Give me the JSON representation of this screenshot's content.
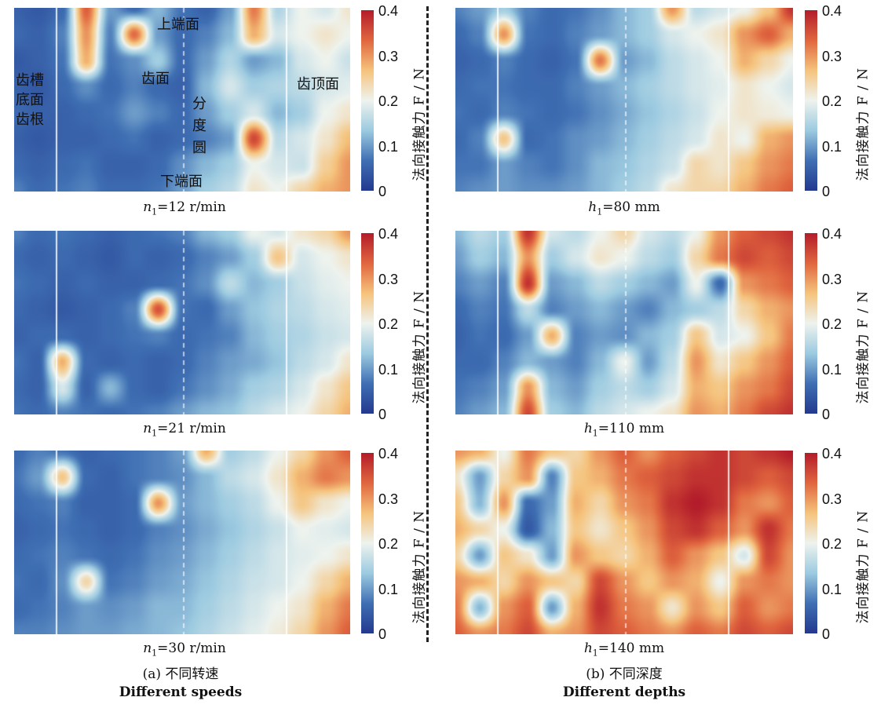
{
  "colorbar": {
    "ticks": [
      "0.4",
      "0.3",
      "0.2",
      "0.1",
      "0"
    ],
    "label": "法向接触力 F / N",
    "colors": [
      "#23398e",
      "#3f6fb3",
      "#9ccae0",
      "#eef3ee",
      "#f5c37c",
      "#e0663f",
      "#b31c2a"
    ]
  },
  "annotations": {
    "top_face": "上端面",
    "tooth_face": "齿面",
    "root_lines": [
      "齿槽",
      "底面",
      "齿根"
    ],
    "pitch_circle": [
      "分",
      "度",
      "圆"
    ],
    "bottom_face": "下端面",
    "tip_face": "齿顶面"
  },
  "captions": {
    "left": [
      {
        "sym": "n",
        "sub": "1",
        "text": "=12 r/min"
      },
      {
        "sym": "n",
        "sub": "1",
        "text": "=21 r/min"
      },
      {
        "sym": "n",
        "sub": "1",
        "text": "=30 r/min"
      }
    ],
    "right": [
      {
        "sym": "h",
        "sub": "1",
        "text": "=80 mm"
      },
      {
        "sym": "h",
        "sub": "1",
        "text": "=110 mm"
      },
      {
        "sym": "h",
        "sub": "1",
        "text": "=140 mm"
      }
    ]
  },
  "groups": {
    "left": {
      "cn": "(a) 不同转速",
      "en": "Different speeds"
    },
    "right": {
      "cn": "(b) 不同深度",
      "en": "Different depths"
    }
  },
  "chart_data": [
    {
      "type": "heatmap",
      "condition": "n1=12 r/min",
      "zlim": [
        0,
        0.4
      ],
      "rows": 8,
      "cols": 15,
      "values": [
        [
          0.05,
          0.04,
          0.06,
          0.34,
          0.1,
          0.06,
          0.12,
          0.07,
          0.05,
          0.1,
          0.32,
          0.15,
          0.2,
          0.18,
          0.22
        ],
        [
          0.06,
          0.05,
          0.08,
          0.3,
          0.08,
          0.33,
          0.1,
          0.06,
          0.08,
          0.12,
          0.28,
          0.18,
          0.2,
          0.22,
          0.2
        ],
        [
          0.04,
          0.05,
          0.07,
          0.28,
          0.07,
          0.09,
          0.14,
          0.06,
          0.1,
          0.15,
          0.1,
          0.12,
          0.18,
          0.2,
          0.17
        ],
        [
          0.05,
          0.04,
          0.06,
          0.09,
          0.06,
          0.08,
          0.06,
          0.05,
          0.12,
          0.18,
          0.14,
          0.15,
          0.16,
          0.18,
          0.19
        ],
        [
          0.06,
          0.05,
          0.05,
          0.06,
          0.07,
          0.1,
          0.08,
          0.06,
          0.1,
          0.14,
          0.18,
          0.12,
          0.14,
          0.2,
          0.22
        ],
        [
          0.05,
          0.04,
          0.05,
          0.05,
          0.06,
          0.07,
          0.05,
          0.06,
          0.08,
          0.1,
          0.36,
          0.16,
          0.18,
          0.22,
          0.27
        ],
        [
          0.06,
          0.05,
          0.06,
          0.07,
          0.05,
          0.05,
          0.06,
          0.09,
          0.12,
          0.14,
          0.2,
          0.18,
          0.17,
          0.25,
          0.3
        ],
        [
          0.08,
          0.06,
          0.07,
          0.08,
          0.06,
          0.06,
          0.07,
          0.1,
          0.14,
          0.16,
          0.22,
          0.2,
          0.24,
          0.28,
          0.3
        ]
      ]
    },
    {
      "type": "heatmap",
      "condition": "n1=21 r/min",
      "zlim": [
        0,
        0.4
      ],
      "rows": 8,
      "cols": 15,
      "values": [
        [
          0.08,
          0.06,
          0.07,
          0.06,
          0.05,
          0.06,
          0.07,
          0.08,
          0.12,
          0.14,
          0.2,
          0.18,
          0.22,
          0.24,
          0.3
        ],
        [
          0.06,
          0.05,
          0.06,
          0.05,
          0.04,
          0.06,
          0.05,
          0.06,
          0.08,
          0.1,
          0.14,
          0.26,
          0.18,
          0.2,
          0.22
        ],
        [
          0.07,
          0.06,
          0.05,
          0.06,
          0.05,
          0.05,
          0.06,
          0.07,
          0.09,
          0.16,
          0.12,
          0.14,
          0.17,
          0.19,
          0.2
        ],
        [
          0.06,
          0.05,
          0.04,
          0.05,
          0.06,
          0.08,
          0.35,
          0.07,
          0.06,
          0.1,
          0.13,
          0.15,
          0.16,
          0.18,
          0.19
        ],
        [
          0.05,
          0.06,
          0.06,
          0.05,
          0.06,
          0.07,
          0.08,
          0.06,
          0.07,
          0.08,
          0.12,
          0.14,
          0.15,
          0.17,
          0.18
        ],
        [
          0.07,
          0.05,
          0.28,
          0.06,
          0.05,
          0.06,
          0.05,
          0.06,
          0.08,
          0.1,
          0.11,
          0.13,
          0.16,
          0.18,
          0.22
        ],
        [
          0.06,
          0.05,
          0.18,
          0.05,
          0.12,
          0.06,
          0.05,
          0.07,
          0.09,
          0.11,
          0.14,
          0.15,
          0.18,
          0.22,
          0.26
        ],
        [
          0.07,
          0.06,
          0.08,
          0.07,
          0.06,
          0.07,
          0.08,
          0.1,
          0.12,
          0.13,
          0.16,
          0.18,
          0.2,
          0.24,
          0.28
        ]
      ]
    },
    {
      "type": "heatmap",
      "condition": "n1=30 r/min",
      "zlim": [
        0,
        0.4
      ],
      "rows": 8,
      "cols": 15,
      "values": [
        [
          0.06,
          0.08,
          0.07,
          0.05,
          0.06,
          0.07,
          0.08,
          0.1,
          0.28,
          0.14,
          0.16,
          0.2,
          0.24,
          0.3,
          0.34
        ],
        [
          0.07,
          0.1,
          0.26,
          0.06,
          0.05,
          0.07,
          0.08,
          0.09,
          0.12,
          0.16,
          0.18,
          0.22,
          0.28,
          0.32,
          0.3
        ],
        [
          0.06,
          0.07,
          0.08,
          0.05,
          0.05,
          0.06,
          0.3,
          0.1,
          0.12,
          0.14,
          0.16,
          0.2,
          0.26,
          0.22,
          0.2
        ],
        [
          0.05,
          0.06,
          0.07,
          0.06,
          0.05,
          0.06,
          0.08,
          0.09,
          0.11,
          0.13,
          0.15,
          0.17,
          0.2,
          0.19,
          0.18
        ],
        [
          0.06,
          0.07,
          0.08,
          0.07,
          0.06,
          0.07,
          0.09,
          0.1,
          0.12,
          0.14,
          0.16,
          0.18,
          0.19,
          0.2,
          0.22
        ],
        [
          0.07,
          0.06,
          0.09,
          0.24,
          0.07,
          0.08,
          0.1,
          0.11,
          0.13,
          0.15,
          0.17,
          0.18,
          0.2,
          0.24,
          0.28
        ],
        [
          0.06,
          0.07,
          0.08,
          0.1,
          0.09,
          0.1,
          0.12,
          0.12,
          0.14,
          0.16,
          0.18,
          0.2,
          0.22,
          0.28,
          0.32
        ],
        [
          0.08,
          0.08,
          0.09,
          0.1,
          0.1,
          0.11,
          0.12,
          0.13,
          0.15,
          0.17,
          0.19,
          0.21,
          0.24,
          0.3,
          0.34
        ]
      ]
    },
    {
      "type": "heatmap",
      "condition": "h1=80 mm",
      "zlim": [
        0,
        0.4
      ],
      "rows": 8,
      "cols": 15,
      "values": [
        [
          0.08,
          0.1,
          0.14,
          0.08,
          0.06,
          0.07,
          0.09,
          0.12,
          0.14,
          0.3,
          0.16,
          0.18,
          0.2,
          0.26,
          0.38
        ],
        [
          0.06,
          0.08,
          0.3,
          0.07,
          0.06,
          0.08,
          0.1,
          0.12,
          0.14,
          0.18,
          0.2,
          0.22,
          0.3,
          0.34,
          0.28
        ],
        [
          0.05,
          0.06,
          0.08,
          0.06,
          0.05,
          0.07,
          0.32,
          0.1,
          0.12,
          0.16,
          0.18,
          0.2,
          0.28,
          0.24,
          0.2
        ],
        [
          0.06,
          0.07,
          0.07,
          0.06,
          0.06,
          0.08,
          0.1,
          0.12,
          0.14,
          0.16,
          0.18,
          0.19,
          0.22,
          0.2,
          0.18
        ],
        [
          0.07,
          0.06,
          0.08,
          0.07,
          0.06,
          0.07,
          0.09,
          0.11,
          0.13,
          0.15,
          0.17,
          0.2,
          0.22,
          0.21,
          0.2
        ],
        [
          0.06,
          0.08,
          0.26,
          0.06,
          0.07,
          0.09,
          0.1,
          0.12,
          0.14,
          0.16,
          0.18,
          0.22,
          0.2,
          0.28,
          0.3
        ],
        [
          0.07,
          0.07,
          0.1,
          0.08,
          0.07,
          0.09,
          0.12,
          0.13,
          0.15,
          0.17,
          0.24,
          0.22,
          0.26,
          0.3,
          0.32
        ],
        [
          0.08,
          0.09,
          0.1,
          0.09,
          0.09,
          0.1,
          0.12,
          0.14,
          0.16,
          0.22,
          0.24,
          0.24,
          0.28,
          0.32,
          0.34
        ]
      ]
    },
    {
      "type": "heatmap",
      "condition": "h1=110 mm",
      "zlim": [
        0,
        0.4
      ],
      "rows": 8,
      "cols": 15,
      "values": [
        [
          0.12,
          0.16,
          0.14,
          0.38,
          0.18,
          0.16,
          0.2,
          0.24,
          0.18,
          0.16,
          0.2,
          0.3,
          0.34,
          0.36,
          0.38
        ],
        [
          0.1,
          0.14,
          0.12,
          0.3,
          0.14,
          0.18,
          0.22,
          0.2,
          0.16,
          0.14,
          0.24,
          0.32,
          0.36,
          0.34,
          0.36
        ],
        [
          0.08,
          0.1,
          0.08,
          0.38,
          0.1,
          0.12,
          0.16,
          0.14,
          0.12,
          0.1,
          0.2,
          0.06,
          0.3,
          0.32,
          0.34
        ],
        [
          0.06,
          0.08,
          0.07,
          0.16,
          0.08,
          0.1,
          0.12,
          0.1,
          0.08,
          0.12,
          0.14,
          0.16,
          0.24,
          0.28,
          0.3
        ],
        [
          0.05,
          0.07,
          0.06,
          0.1,
          0.28,
          0.08,
          0.1,
          0.09,
          0.12,
          0.14,
          0.26,
          0.18,
          0.2,
          0.26,
          0.32
        ],
        [
          0.06,
          0.06,
          0.08,
          0.12,
          0.1,
          0.08,
          0.12,
          0.2,
          0.1,
          0.16,
          0.3,
          0.22,
          0.26,
          0.3,
          0.34
        ],
        [
          0.07,
          0.08,
          0.1,
          0.3,
          0.12,
          0.1,
          0.14,
          0.16,
          0.14,
          0.18,
          0.28,
          0.26,
          0.3,
          0.32,
          0.36
        ],
        [
          0.08,
          0.1,
          0.12,
          0.36,
          0.14,
          0.12,
          0.16,
          0.18,
          0.2,
          0.22,
          0.3,
          0.28,
          0.32,
          0.36,
          0.38
        ]
      ]
    },
    {
      "type": "heatmap",
      "condition": "h1=140 mm",
      "zlim": [
        0,
        0.4
      ],
      "rows": 8,
      "cols": 15,
      "values": [
        [
          0.3,
          0.28,
          0.2,
          0.32,
          0.26,
          0.24,
          0.3,
          0.34,
          0.3,
          0.34,
          0.36,
          0.38,
          0.36,
          0.38,
          0.4
        ],
        [
          0.22,
          0.1,
          0.24,
          0.3,
          0.08,
          0.26,
          0.28,
          0.32,
          0.34,
          0.36,
          0.38,
          0.38,
          0.36,
          0.34,
          0.36
        ],
        [
          0.26,
          0.12,
          0.3,
          0.06,
          0.1,
          0.28,
          0.24,
          0.3,
          0.32,
          0.38,
          0.4,
          0.38,
          0.32,
          0.3,
          0.34
        ],
        [
          0.28,
          0.24,
          0.2,
          0.04,
          0.12,
          0.26,
          0.22,
          0.26,
          0.3,
          0.36,
          0.38,
          0.34,
          0.3,
          0.38,
          0.32
        ],
        [
          0.24,
          0.1,
          0.26,
          0.22,
          0.1,
          0.3,
          0.26,
          0.24,
          0.28,
          0.34,
          0.3,
          0.26,
          0.18,
          0.36,
          0.3
        ],
        [
          0.3,
          0.28,
          0.24,
          0.3,
          0.26,
          0.24,
          0.36,
          0.3,
          0.26,
          0.3,
          0.28,
          0.2,
          0.3,
          0.32,
          0.3
        ],
        [
          0.32,
          0.12,
          0.3,
          0.34,
          0.1,
          0.28,
          0.38,
          0.32,
          0.3,
          0.22,
          0.3,
          0.26,
          0.34,
          0.3,
          0.32
        ],
        [
          0.34,
          0.3,
          0.32,
          0.36,
          0.28,
          0.3,
          0.36,
          0.34,
          0.32,
          0.3,
          0.34,
          0.32,
          0.36,
          0.34,
          0.36
        ]
      ]
    }
  ]
}
